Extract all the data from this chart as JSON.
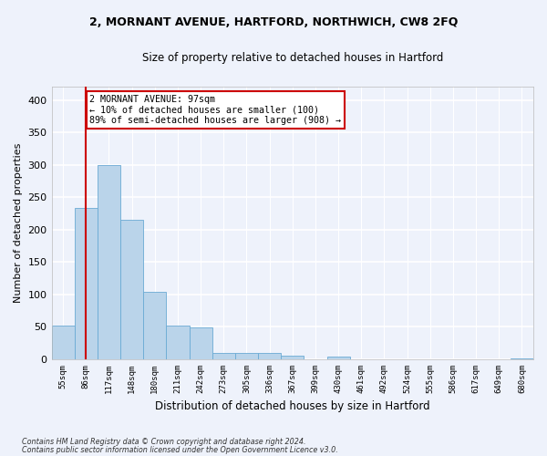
{
  "title1": "2, MORNANT AVENUE, HARTFORD, NORTHWICH, CW8 2FQ",
  "title2": "Size of property relative to detached houses in Hartford",
  "xlabel": "Distribution of detached houses by size in Hartford",
  "ylabel": "Number of detached properties",
  "categories": [
    "55sqm",
    "86sqm",
    "117sqm",
    "148sqm",
    "180sqm",
    "211sqm",
    "242sqm",
    "273sqm",
    "305sqm",
    "336sqm",
    "367sqm",
    "399sqm",
    "430sqm",
    "461sqm",
    "492sqm",
    "524sqm",
    "555sqm",
    "586sqm",
    "617sqm",
    "649sqm",
    "680sqm"
  ],
  "values": [
    52,
    233,
    299,
    215,
    104,
    52,
    49,
    10,
    10,
    10,
    5,
    0,
    4,
    0,
    0,
    0,
    0,
    0,
    0,
    0,
    2
  ],
  "bar_color": "#bad4ea",
  "bar_edge_color": "#6aaad4",
  "background_color": "#eef2fb",
  "grid_color": "#ffffff",
  "annotation_box_color": "#ffffff",
  "annotation_border_color": "#cc0000",
  "annotation_line_color": "#cc0000",
  "annotation_text_line1": "2 MORNANT AVENUE: 97sqm",
  "annotation_text_line2": "← 10% of detached houses are smaller (100)",
  "annotation_text_line3": "89% of semi-detached houses are larger (908) →",
  "property_line_x": 1.0,
  "footnote1": "Contains HM Land Registry data © Crown copyright and database right 2024.",
  "footnote2": "Contains public sector information licensed under the Open Government Licence v3.0.",
  "ylim": [
    0,
    420
  ],
  "yticks": [
    0,
    50,
    100,
    150,
    200,
    250,
    300,
    350,
    400
  ]
}
